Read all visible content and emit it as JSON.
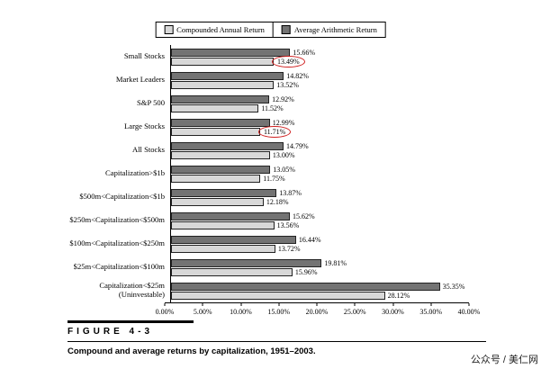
{
  "legend": {
    "items": [
      {
        "label": "Compounded Annual Return",
        "color": "#d8d8d8"
      },
      {
        "label": "Average Arithmetic Return",
        "color": "#737373"
      }
    ]
  },
  "chart_data": {
    "type": "bar",
    "orientation": "horizontal",
    "title": "Compound and average returns by capitalization, 1951–2003.",
    "xlabel": "",
    "ylabel": "",
    "xlim": [
      0,
      40
    ],
    "grid": false,
    "legend_position": "top",
    "categories": [
      "Small Stocks",
      "Market Leaders",
      "S&P 500",
      "Large Stocks",
      "All Stocks",
      "Capitalization>$1b",
      "$500m<Capitalization<$1b",
      "$250m<Capitalization<$500m",
      "$100m<Capitalization<$250m",
      "$25m<Capitalization<$100m",
      "Capitalization<$25m\n(Uninvestable)"
    ],
    "series": [
      {
        "name": "Average Arithmetic Return",
        "color": "#737373",
        "values": [
          15.66,
          14.82,
          12.92,
          12.99,
          14.79,
          13.05,
          13.87,
          15.62,
          16.44,
          19.81,
          35.35
        ]
      },
      {
        "name": "Compounded Annual Return",
        "color": "#d8d8d8",
        "values": [
          13.49,
          13.52,
          11.52,
          11.71,
          13.0,
          11.75,
          12.18,
          13.56,
          13.72,
          15.96,
          28.12
        ]
      }
    ],
    "circled_values": [
      [
        1,
        0
      ],
      [
        1,
        3
      ]
    ],
    "circle_color": "#cf1f1f",
    "xticks": [
      "0.00%",
      "5.00%",
      "10.00%",
      "15.00%",
      "20.00%",
      "25.00%",
      "30.00%",
      "35.00%",
      "40.00%"
    ]
  },
  "figure": {
    "label": "FIGURE 4-3",
    "caption": "Compound and average returns by capitalization, 1951–2003."
  },
  "watermark": "公众号 / 美仁网"
}
